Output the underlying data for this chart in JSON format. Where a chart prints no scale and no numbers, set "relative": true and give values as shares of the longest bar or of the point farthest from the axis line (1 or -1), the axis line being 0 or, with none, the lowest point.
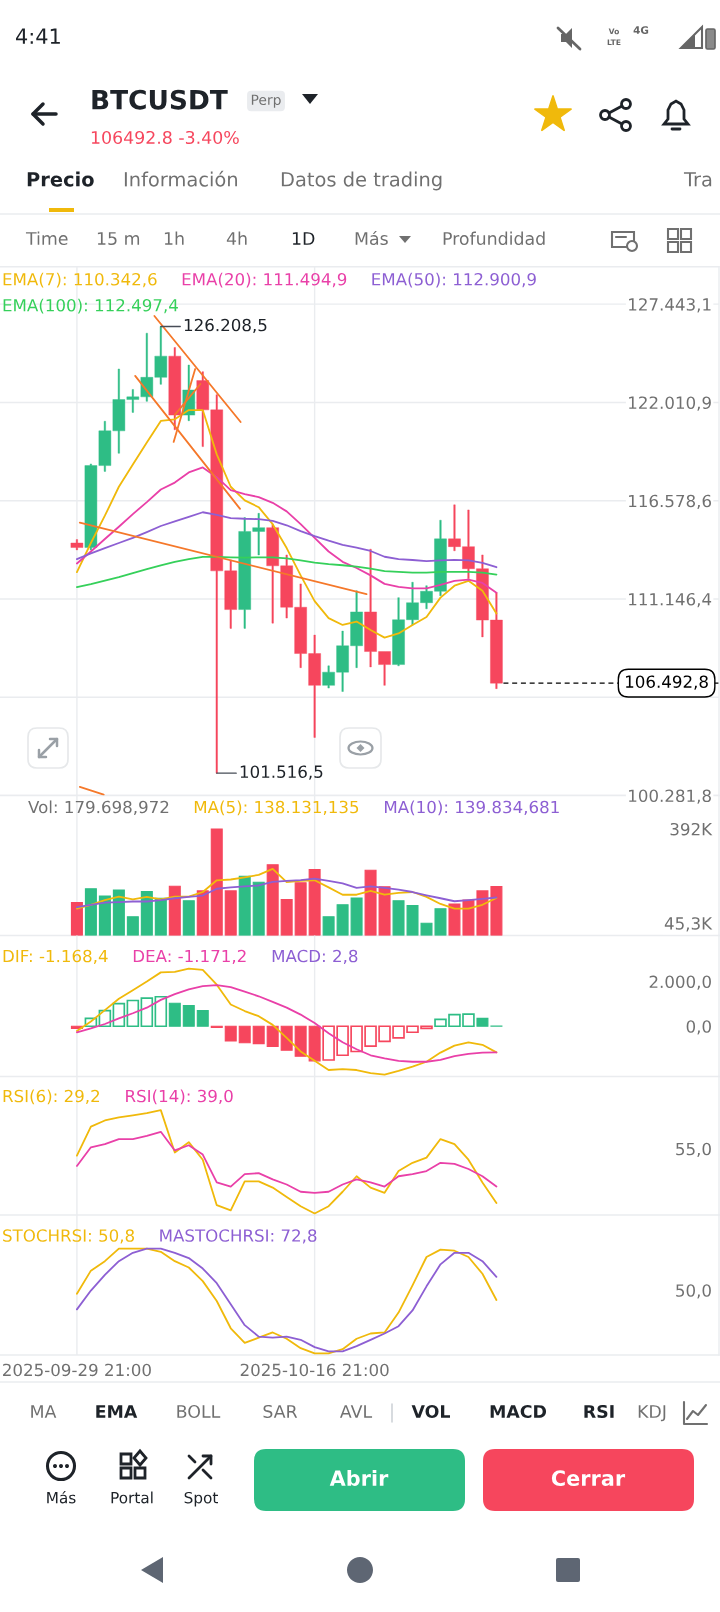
{
  "chart_data": [
    {
      "type": "other",
      "title": "BTCUSDT",
      "subtitle": "106492.8 -3.40%",
      "annotations": [
        "4:41",
        "Vo",
        "LTE",
        "4G",
        "Perp",
        "Precio",
        "Información",
        "Datos de trading",
        "Tra",
        "Time",
        "15 m",
        "1h",
        "4h",
        "1D",
        "Más",
        "Profundidad"
      ]
    },
    {
      "type": "candlestick",
      "legend": "top left",
      "grid": true,
      "tick_labels": "y",
      "x": [
        "2025-09-29T21:00",
        "2025-09-30T21:00",
        "2025-10-01T21:00",
        "2025-10-02T21:00",
        "2025-10-03T21:00",
        "2025-10-04T21:00",
        "2025-10-05T21:00",
        "2025-10-06T21:00",
        "2025-10-07T21:00",
        "2025-10-08T21:00",
        "2025-10-09T21:00",
        "2025-10-10T21:00",
        "2025-10-11T21:00",
        "2025-10-12T21:00",
        "2025-10-13T21:00",
        "2025-10-14T21:00",
        "2025-10-15T21:00",
        "2025-10-16T21:00",
        "2025-10-17T21:00",
        "2025-10-18T21:00",
        "2025-10-19T21:00",
        "2025-10-20T21:00",
        "2025-10-21T21:00",
        "2025-10-22T21:00",
        "2025-10-23T21:00",
        "2025-10-24T21:00",
        "2025-10-25T21:00",
        "2025-10-26T21:00",
        "2025-10-27T21:00",
        "2025-10-28T21:00",
        "2025-10-29T21:00"
      ],
      "ohlc": [
        [
          114240,
          114430,
          113860,
          113990
        ],
        [
          113990,
          118610,
          113860,
          118520
        ],
        [
          118520,
          120970,
          118200,
          120440
        ],
        [
          120440,
          123860,
          119200,
          122170
        ],
        [
          122170,
          122730,
          121460,
          122320
        ],
        [
          122320,
          125840,
          122070,
          123400
        ],
        [
          123400,
          126208.5,
          123010,
          124570
        ],
        [
          124570,
          125050,
          120500,
          121310
        ],
        [
          121310,
          124080,
          121000,
          122700
        ],
        [
          123220,
          123710,
          119570,
          121600
        ],
        [
          121600,
          122440,
          101516.5,
          112700
        ],
        [
          112700,
          113300,
          109520,
          110560
        ],
        [
          110560,
          115650,
          109520,
          114880
        ],
        [
          114880,
          115880,
          113580,
          115090
        ],
        [
          115090,
          115280,
          109810,
          112980
        ],
        [
          112980,
          113580,
          110090,
          110690
        ],
        [
          110690,
          111980,
          107350,
          108130
        ],
        [
          108130,
          109150,
          103490,
          106370
        ],
        [
          106370,
          107450,
          106220,
          107100
        ],
        [
          107100,
          109370,
          106030,
          108560
        ],
        [
          108560,
          111600,
          107350,
          110430
        ],
        [
          110430,
          113900,
          107390,
          108240
        ],
        [
          108240,
          108240,
          106370,
          107520
        ],
        [
          107520,
          111220,
          107450,
          110000
        ],
        [
          110000,
          112070,
          109710,
          110940
        ],
        [
          110940,
          111880,
          110600,
          111570
        ],
        [
          111570,
          115500,
          111320,
          114470
        ],
        [
          114470,
          116350,
          113810,
          114040
        ],
        [
          114040,
          116070,
          112260,
          112820
        ],
        [
          112820,
          113580,
          109050,
          109980
        ],
        [
          109980,
          111500,
          106190,
          106492.8
        ]
      ],
      "colors": [
        "#f6465d",
        "#2ebd85",
        "#2ebd85",
        "#2ebd85",
        "#2ebd85",
        "#2ebd85",
        "#2ebd85",
        "#f6465d",
        "#2ebd85",
        "#f6465d",
        "#f6465d",
        "#f6465d",
        "#2ebd85",
        "#2ebd85",
        "#f6465d",
        "#f6465d",
        "#f6465d",
        "#f6465d",
        "#2ebd85",
        "#2ebd85",
        "#2ebd85",
        "#f6465d",
        "#f6465d",
        "#2ebd85",
        "#2ebd85",
        "#2ebd85",
        "#2ebd85",
        "#f6465d",
        "#f6465d",
        "#f6465d",
        "#f6465d"
      ],
      "series": [
        {
          "name": "EMA(7): 110.342,6",
          "type": "line",
          "color": "#f0b90b",
          "values": [
            112630,
            114240,
            115750,
            117350,
            118580,
            119800,
            120990,
            121080,
            121590,
            121590,
            119140,
            117350,
            116600,
            116220,
            115280,
            113960,
            112450,
            111030,
            110090,
            109710,
            109900,
            109430,
            109010,
            109240,
            109710,
            110150,
            111220,
            111880,
            112150,
            111600,
            110342.6
          ]
        },
        {
          "name": "EMA(20): 111.494,9",
          "type": "line",
          "color": "#e940a8",
          "values": [
            113110,
            113770,
            114460,
            115140,
            115840,
            116500,
            117200,
            117580,
            118140,
            118420,
            117880,
            117160,
            116940,
            116780,
            116460,
            115990,
            115280,
            114520,
            113770,
            113200,
            112860,
            112450,
            111980,
            111820,
            111730,
            111730,
            111920,
            112150,
            112220,
            112030,
            111494.9
          ]
        },
        {
          "name": "EMA(50): 112.900,9",
          "type": "line",
          "color": "#8d5fd3",
          "values": [
            113350,
            113670,
            113960,
            114240,
            114520,
            114840,
            115180,
            115430,
            115690,
            115940,
            115790,
            115620,
            115580,
            115560,
            115460,
            115220,
            114900,
            114620,
            114370,
            114140,
            113990,
            113800,
            113480,
            113350,
            113300,
            113240,
            113280,
            113310,
            113280,
            113140,
            112900.9
          ]
        },
        {
          "name": "EMA(100): 112.497,4",
          "type": "line",
          "color": "#35d05a",
          "values": [
            111800,
            111970,
            112160,
            112350,
            112580,
            112790,
            113010,
            113200,
            113350,
            113470,
            113470,
            113450,
            113430,
            113450,
            113450,
            113390,
            113280,
            113160,
            113070,
            113010,
            112940,
            112820,
            112690,
            112640,
            112600,
            112600,
            112640,
            112640,
            112640,
            112600,
            112497.4
          ]
        },
        {
          "type": "line",
          "color": "#f5782a",
          "x": [
            "2025-10-05T10:00",
            "2025-10-11T14:00"
          ],
          "values": [
            126790,
            120930
          ]
        },
        {
          "type": "line",
          "color": "#f5782a",
          "x": [
            "2025-10-04T01:00",
            "2025-10-11T13:00"
          ],
          "values": [
            123480,
            116130
          ]
        },
        {
          "type": "line",
          "color": "#f5782a",
          "x": [
            "2025-10-06T19:00",
            "2025-10-08T08:00"
          ],
          "values": [
            119830,
            123860
          ]
        },
        {
          "type": "line",
          "color": "#f5782a",
          "x": [
            "2025-10-06T21:00",
            "2025-10-08T17:00"
          ],
          "values": [
            121320,
            123030
          ]
        },
        {
          "type": "line",
          "color": "#f5782a",
          "x": [
            "2025-09-30T02:00",
            "2025-10-20T14:00"
          ],
          "values": [
            115370,
            111410
          ]
        },
        {
          "type": "line",
          "color": "#f5782a",
          "x": [
            "2025-09-30T02:00",
            "2025-10-01T19:00"
          ],
          "values": [
            100760,
            100330
          ]
        }
      ],
      "annotations": [
        {
          "text": "126.208,5",
          "x": "2025-10-05T21:00",
          "y": 126208.5
        },
        {
          "text": "101.516,5",
          "x": "2025-10-09T21:00",
          "y": 101516.5
        }
      ],
      "ref_lines": [
        {
          "axis": "y",
          "value": 106492.8,
          "label": "106.492,8",
          "color": "#000000",
          "line_style": "dashed"
        }
      ],
      "xlim": [
        "2025-09-24T09:00",
        "2025-11-14T19:00"
      ],
      "xticks": [
        {
          "value": "2025-09-29T21:00",
          "label": null
        },
        {
          "value": "2025-10-16T21:00",
          "label": null
        }
      ],
      "ylim": [
        100281.8,
        129515
      ],
      "yticks": [
        {
          "value": 100281.8,
          "label": "100.281,8"
        },
        {
          "value": 105714.1,
          "label": null
        },
        {
          "value": 111146.4,
          "label": "111.146,4"
        },
        {
          "value": 116578.6,
          "label": "116.578,6"
        },
        {
          "value": 122010.9,
          "label": "122.010,9"
        },
        {
          "value": 127443.1,
          "label": "127.443,1"
        }
      ]
    },
    {
      "type": "bar",
      "legend": "top left",
      "legend_title": "Vol: 179.698,972",
      "grid": "x",
      "tick_labels": "y",
      "x": [
        "2025-09-29T21:00",
        "2025-09-30T21:00",
        "2025-10-01T21:00",
        "2025-10-02T21:00",
        "2025-10-03T21:00",
        "2025-10-04T21:00",
        "2025-10-05T21:00",
        "2025-10-06T21:00",
        "2025-10-07T21:00",
        "2025-10-08T21:00",
        "2025-10-09T21:00",
        "2025-10-10T21:00",
        "2025-10-11T21:00",
        "2025-10-12T21:00",
        "2025-10-13T21:00",
        "2025-10-14T21:00",
        "2025-10-15T21:00",
        "2025-10-16T21:00",
        "2025-10-17T21:00",
        "2025-10-18T21:00",
        "2025-10-19T21:00",
        "2025-10-20T21:00",
        "2025-10-21T21:00",
        "2025-10-22T21:00",
        "2025-10-23T21:00",
        "2025-10-24T21:00",
        "2025-10-25T21:00",
        "2025-10-26T21:00",
        "2025-10-27T21:00",
        "2025-10-28T21:00",
        "2025-10-29T21:00"
      ],
      "series": [
        {
          "type": "bar",
          "colors": [
            "#f6465d",
            "#2ebd85",
            "#2ebd85",
            "#2ebd85",
            "#2ebd85",
            "#2ebd85",
            "#2ebd85",
            "#f6465d",
            "#2ebd85",
            "#f6465d",
            "#f6465d",
            "#f6465d",
            "#2ebd85",
            "#2ebd85",
            "#f6465d",
            "#f6465d",
            "#f6465d",
            "#f6465d",
            "#2ebd85",
            "#2ebd85",
            "#2ebd85",
            "#f6465d",
            "#f6465d",
            "#2ebd85",
            "#2ebd85",
            "#2ebd85",
            "#2ebd85",
            "#f6465d",
            "#f6465d",
            "#f6465d",
            "#f6465d"
          ],
          "values": [
            121000,
            172000,
            145000,
            167000,
            69000,
            162000,
            137000,
            181000,
            128000,
            164000,
            392000,
            164000,
            218000,
            196000,
            260000,
            132000,
            194000,
            243000,
            69000,
            113000,
            138000,
            240000,
            179000,
            128000,
            110000,
            45300,
            98000,
            116000,
            130000,
            164000,
            179698.972
          ]
        },
        {
          "name": "MA(5): 138.131,135",
          "type": "line",
          "color": "#f0b90b",
          "values": [
            99000,
            113000,
            130000,
            143000,
            133000,
            142000,
            133000,
            143000,
            143000,
            160000,
            203000,
            206000,
            214000,
            223000,
            245000,
            196000,
            201000,
            203000,
            177000,
            150000,
            150000,
            164000,
            150000,
            157000,
            160000,
            142000,
            116000,
            99000,
            99000,
            113000,
            138131.135
          ]
        },
        {
          "name": "MA(10): 139.834,681",
          "type": "line",
          "color": "#8d5fd3",
          "values": [
            104000,
            113000,
            121000,
            123000,
            125000,
            125000,
            130000,
            137000,
            142000,
            147000,
            172000,
            177000,
            181000,
            184000,
            197000,
            201000,
            204000,
            209000,
            201000,
            192000,
            175000,
            181000,
            175000,
            169000,
            160000,
            148000,
            137000,
            126000,
            130000,
            135000,
            139834.681
          ]
        }
      ],
      "xlim": [
        "2025-09-24T09:00",
        "2025-11-14T19:00"
      ],
      "xticks": [
        {
          "value": "2025-09-29T21:00",
          "label": null
        },
        {
          "value": "2025-10-16T21:00",
          "label": null
        }
      ],
      "ylim": [
        0,
        515000
      ],
      "yticks": [
        {
          "value": 45300,
          "label": "45,3K"
        },
        {
          "value": 392000,
          "label": "392K"
        }
      ]
    },
    {
      "type": "bar",
      "legend": "top left",
      "grid": "x",
      "tick_labels": "y",
      "annotations": [
        "MACD: 2,8"
      ],
      "x": [
        "2025-09-29T21:00",
        "2025-09-30T21:00",
        "2025-10-01T21:00",
        "2025-10-02T21:00",
        "2025-10-03T21:00",
        "2025-10-04T21:00",
        "2025-10-05T21:00",
        "2025-10-06T21:00",
        "2025-10-07T21:00",
        "2025-10-08T21:00",
        "2025-10-09T21:00",
        "2025-10-10T21:00",
        "2025-10-11T21:00",
        "2025-10-12T21:00",
        "2025-10-13T21:00",
        "2025-10-14T21:00",
        "2025-10-15T21:00",
        "2025-10-16T21:00",
        "2025-10-17T21:00",
        "2025-10-18T21:00",
        "2025-10-19T21:00",
        "2025-10-20T21:00",
        "2025-10-21T21:00",
        "2025-10-22T21:00",
        "2025-10-23T21:00",
        "2025-10-24T21:00",
        "2025-10-25T21:00",
        "2025-10-26T21:00",
        "2025-10-27T21:00",
        "2025-10-28T21:00",
        "2025-10-29T21:00"
      ],
      "series": [
        {
          "name": "DIF: -1.168,4",
          "type": "line",
          "color": "#f0b90b",
          "values": [
            -210,
            210,
            720,
            1230,
            1610,
            2000,
            2410,
            2430,
            2580,
            2520,
            1860,
            970,
            680,
            450,
            60,
            -520,
            -1130,
            -1550,
            -1960,
            -1920,
            -1960,
            -2100,
            -2170,
            -2000,
            -1810,
            -1590,
            -1180,
            -870,
            -720,
            -830,
            -1168.4
          ]
        },
        {
          "name": "DEA: -1.171,2",
          "type": "line",
          "color": "#e940a8",
          "values": [
            -270,
            -100,
            100,
            350,
            580,
            830,
            1180,
            1440,
            1650,
            1790,
            1840,
            1750,
            1550,
            1340,
            1090,
            830,
            520,
            140,
            -310,
            -720,
            -1030,
            -1300,
            -1440,
            -1550,
            -1590,
            -1590,
            -1510,
            -1340,
            -1240,
            -1180,
            -1171.2
          ]
        },
        {
          "type": "bar",
          "colors": [
            "#f6465d",
            "#2ebd85",
            "#2ebd85",
            "#2ebd85",
            "#2ebd85",
            "#2ebd85",
            "#2ebd85",
            "#2ebd85",
            "#2ebd85",
            "#2ebd85",
            "#f6465d",
            "#f6465d",
            "#f6465d",
            "#f6465d",
            "#f6465d",
            "#f6465d",
            "#f6465d",
            "#f6465d",
            "#f6465d",
            "#f6465d",
            "#f6465d",
            "#f6465d",
            "#f6465d",
            "#f6465d",
            "#f6465d",
            "#f6465d",
            "#2ebd85",
            "#2ebd85",
            "#2ebd85",
            "#2ebd85",
            "#2ebd85"
          ],
          "values": [
            -100,
            350,
            700,
            1010,
            1150,
            1260,
            1320,
            1030,
            930,
            700,
            -60,
            -660,
            -740,
            -780,
            -910,
            -1070,
            -1340,
            -1550,
            -1510,
            -1300,
            -1130,
            -890,
            -680,
            -520,
            -270,
            -100,
            310,
            520,
            540,
            350,
            2.8
          ]
        }
      ],
      "xlim": [
        "2025-09-24T09:00",
        "2025-11-14T19:00"
      ],
      "xticks": [
        {
          "value": "2025-09-29T21:00",
          "label": null
        },
        {
          "value": "2025-10-16T21:00",
          "label": null
        }
      ],
      "ylim": [
        -2250,
        4060
      ],
      "yticks": [
        {
          "value": 0,
          "label": "0,0"
        },
        {
          "value": 2000,
          "label": "2.000,0"
        }
      ]
    },
    {
      "type": "line",
      "legend": "top left",
      "grid": "x",
      "tick_labels": false,
      "relative": true,
      "annotations": [
        "55,0"
      ],
      "x": [
        "2025-09-29T21:00",
        "2025-09-30T21:00",
        "2025-10-01T21:00",
        "2025-10-02T21:00",
        "2025-10-03T21:00",
        "2025-10-04T21:00",
        "2025-10-05T21:00",
        "2025-10-06T21:00",
        "2025-10-07T21:00",
        "2025-10-08T21:00",
        "2025-10-09T21:00",
        "2025-10-10T21:00",
        "2025-10-11T21:00",
        "2025-10-12T21:00",
        "2025-10-13T21:00",
        "2025-10-14T21:00",
        "2025-10-15T21:00",
        "2025-10-16T21:00",
        "2025-10-17T21:00",
        "2025-10-18T21:00",
        "2025-10-19T21:00",
        "2025-10-20T21:00",
        "2025-10-21T21:00",
        "2025-10-22T21:00",
        "2025-10-23T21:00",
        "2025-10-24T21:00",
        "2025-10-25T21:00",
        "2025-10-26T21:00",
        "2025-10-27T21:00",
        "2025-10-28T21:00",
        "2025-10-29T21:00"
      ],
      "series": [
        {
          "name": "RSI(6): 29,2",
          "color": "#f0b90b",
          "values": [
            0.56,
            0.84,
            0.9,
            0.93,
            0.95,
            0.97,
            1,
            0.59,
            0.69,
            0.52,
            0.08,
            0.03,
            0.31,
            0.31,
            0.25,
            0.16,
            0.07,
            0,
            0.07,
            0.21,
            0.36,
            0.25,
            0.2,
            0.41,
            0.49,
            0.54,
            0.72,
            0.67,
            0.52,
            0.3,
            0.1
          ]
        },
        {
          "name": "RSI(14): 39,0",
          "color": "#e940a8",
          "values": [
            0.46,
            0.64,
            0.67,
            0.72,
            0.72,
            0.75,
            0.79,
            0.61,
            0.66,
            0.57,
            0.3,
            0.26,
            0.38,
            0.39,
            0.33,
            0.28,
            0.21,
            0.2,
            0.21,
            0.28,
            0.33,
            0.3,
            0.26,
            0.36,
            0.38,
            0.41,
            0.49,
            0.48,
            0.43,
            0.36,
            0.26
          ]
        }
      ],
      "xlim": [
        "2025-09-24T09:00",
        "2025-11-14T19:00"
      ],
      "xticks": [
        {
          "value": "2025-09-29T21:00",
          "label": null
        },
        {
          "value": "2025-10-16T21:00",
          "label": null
        }
      ]
    },
    {
      "type": "line",
      "legend": "top left",
      "grid": "x",
      "tick_labels": "x",
      "relative": true,
      "annotations": [
        "50,0"
      ],
      "x": [
        "2025-09-29T21:00",
        "2025-09-30T21:00",
        "2025-10-01T21:00",
        "2025-10-02T21:00",
        "2025-10-03T21:00",
        "2025-10-04T21:00",
        "2025-10-05T21:00",
        "2025-10-06T21:00",
        "2025-10-07T21:00",
        "2025-10-08T21:00",
        "2025-10-09T21:00",
        "2025-10-10T21:00",
        "2025-10-11T21:00",
        "2025-10-12T21:00",
        "2025-10-13T21:00",
        "2025-10-14T21:00",
        "2025-10-15T21:00",
        "2025-10-16T21:00",
        "2025-10-17T21:00",
        "2025-10-18T21:00",
        "2025-10-19T21:00",
        "2025-10-20T21:00",
        "2025-10-21T21:00",
        "2025-10-22T21:00",
        "2025-10-23T21:00",
        "2025-10-24T21:00",
        "2025-10-25T21:00",
        "2025-10-26T21:00",
        "2025-10-27T21:00",
        "2025-10-28T21:00",
        "2025-10-29T21:00"
      ],
      "series": [
        {
          "name": "STOCHRSI: 50,8",
          "color": "#f0b90b",
          "values": [
            0.57,
            0.79,
            0.88,
            1,
            1,
            1,
            0.97,
            0.88,
            0.82,
            0.69,
            0.5,
            0.24,
            0.1,
            0.15,
            0.2,
            0.14,
            0.05,
            0,
            0,
            0.04,
            0.14,
            0.19,
            0.2,
            0.39,
            0.65,
            0.92,
            0.99,
            0.98,
            0.92,
            0.76,
            0.51
          ]
        },
        {
          "name": "MASTOCHRSI: 72,8",
          "color": "#8d5fd3",
          "values": [
            0.42,
            0.6,
            0.75,
            0.88,
            0.96,
            1,
            1,
            0.96,
            0.91,
            0.81,
            0.67,
            0.47,
            0.27,
            0.16,
            0.15,
            0.16,
            0.13,
            0.06,
            0.02,
            0.02,
            0.07,
            0.13,
            0.19,
            0.26,
            0.41,
            0.64,
            0.85,
            0.96,
            0.96,
            0.88,
            0.73
          ]
        }
      ],
      "xlim": [
        "2025-09-24T09:00",
        "2025-11-14T19:00"
      ],
      "xticks": [
        {
          "value": "2025-09-29T21:00",
          "label": "2025-09-29 21:00"
        },
        {
          "value": "2025-10-16T21:00",
          "label": "2025-10-16 21:00"
        }
      ]
    },
    {
      "type": "other",
      "annotations": [
        "MA",
        "EMA",
        "BOLL",
        "SAR",
        "AVL",
        "VOL",
        "MACD",
        "RSI",
        "KDJ",
        "Más",
        "Portal",
        "Spot",
        "Abrir",
        "Cerrar"
      ]
    }
  ]
}
